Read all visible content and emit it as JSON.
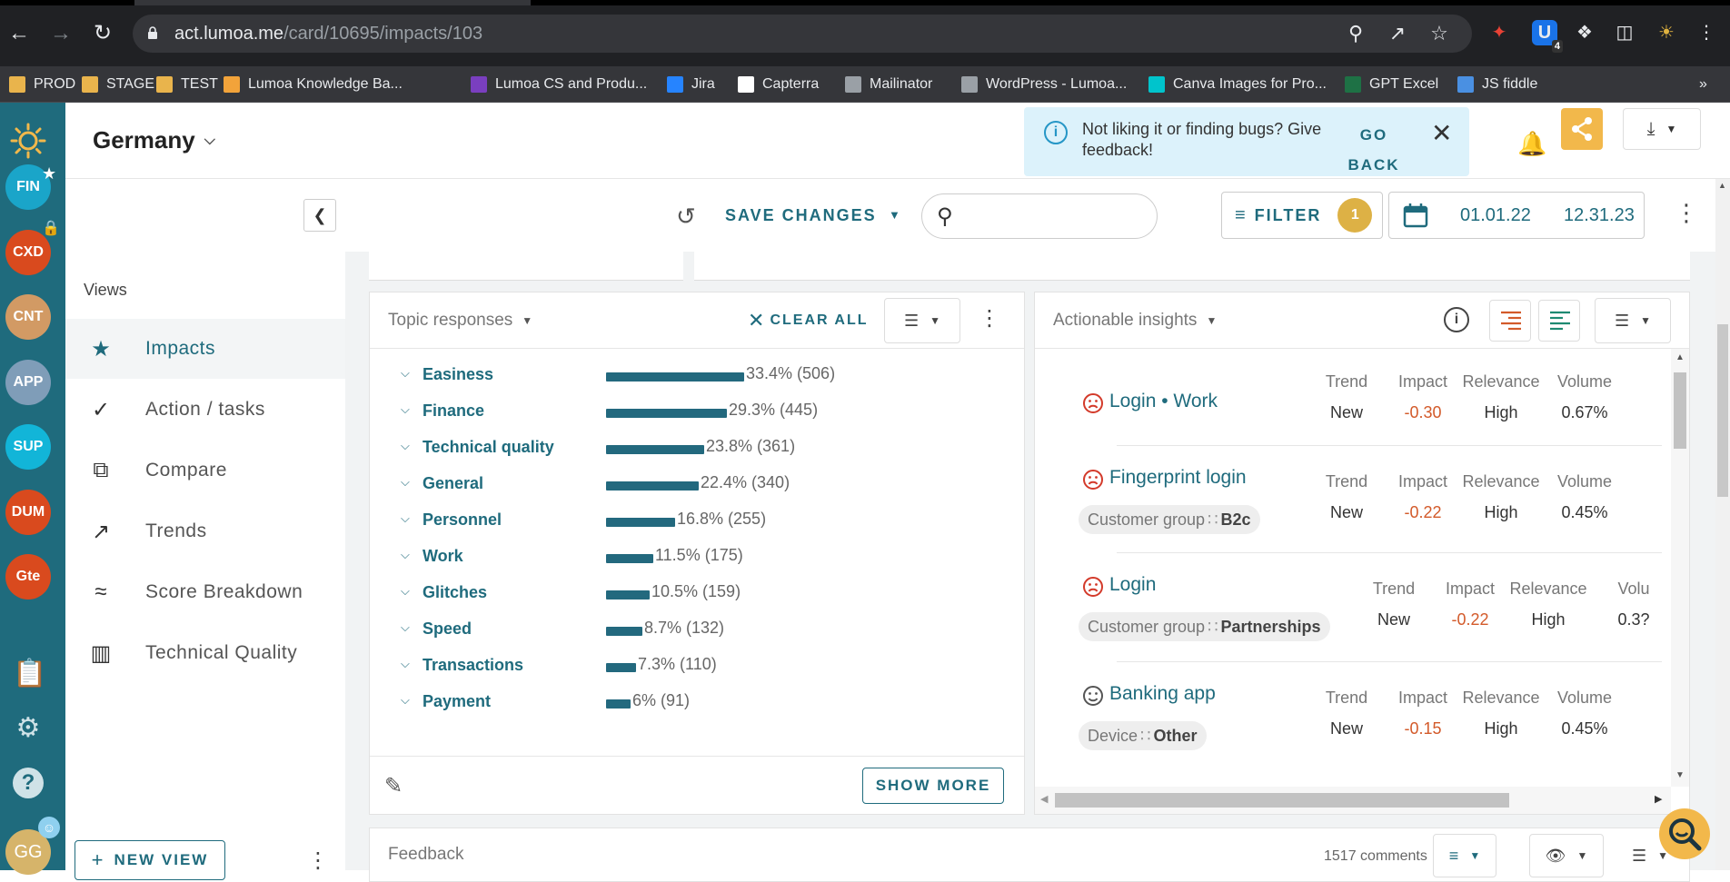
{
  "browser": {
    "url_host": "act.lumoa.me",
    "url_path": "/card/10695/impacts/103",
    "ext_badge": "4",
    "bookmarks": [
      {
        "label": "PROD",
        "color": "#e9b44c"
      },
      {
        "label": "STAGE",
        "color": "#e9b44c"
      },
      {
        "label": "TEST",
        "color": "#e9b44c"
      },
      {
        "label": "Lumoa Knowledge Ba...",
        "color": "#f2a33a"
      },
      {
        "label": "Lumoa CS and Produ...",
        "color": "#7a3fbf"
      },
      {
        "label": "Jira",
        "color": "#2684ff"
      },
      {
        "label": "Capterra",
        "color": "#ffffff"
      },
      {
        "label": "Mailinator",
        "color": "#9aa0a6"
      },
      {
        "label": "WordPress - Lumoa...",
        "color": "#9aa0a6"
      },
      {
        "label": "Canva Images for Pro...",
        "color": "#00c4cc"
      },
      {
        "label": "GPT Excel",
        "color": "#1e7145"
      },
      {
        "label": "JS fiddle",
        "color": "#4a90e2"
      }
    ]
  },
  "rail": {
    "avatars": [
      {
        "label": "FIN",
        "color": "#1aa5c9"
      },
      {
        "label": "CXD",
        "color": "#d94a1e"
      },
      {
        "label": "CNT",
        "color": "#d29a64"
      },
      {
        "label": "APP",
        "color": "#7f9db8"
      },
      {
        "label": "SUP",
        "color": "#12b5d8"
      },
      {
        "label": "DUM",
        "color": "#d94a1e"
      },
      {
        "label": "Gte",
        "color": "#d94a1e"
      }
    ],
    "user_initials": "GG"
  },
  "header": {
    "project": "Germany",
    "toast_message": "Not liking it or finding bugs? Give feedback!",
    "toast_action": "GO BACK"
  },
  "views": {
    "title": "Views",
    "items": [
      {
        "label": "Impacts",
        "icon": "star-icon"
      },
      {
        "label": "Action / tasks",
        "icon": "check-circle-icon"
      },
      {
        "label": "Compare",
        "icon": "compare-icon"
      },
      {
        "label": "Trends",
        "icon": "trend-icon"
      },
      {
        "label": "Score Breakdown",
        "icon": "score-breakdown-icon"
      },
      {
        "label": "Technical Quality",
        "icon": "bar-chart-icon"
      }
    ],
    "new_view": "NEW VIEW"
  },
  "toolbar": {
    "save_changes": "SAVE CHANGES",
    "search_placeholder": "",
    "filter_label": "FILTER",
    "filter_count": "1",
    "date_from": "01.01.22",
    "date_to": "12.31.23"
  },
  "topics": {
    "title": "Topic responses",
    "clear_all": "CLEAR ALL",
    "show_more": "SHOW MORE",
    "rows": [
      {
        "name": "Easiness",
        "pct": 33.4,
        "value": "33.4% (506)"
      },
      {
        "name": "Finance",
        "pct": 29.3,
        "value": "29.3% (445)"
      },
      {
        "name": "Technical quality",
        "pct": 23.8,
        "value": "23.8% (361)"
      },
      {
        "name": "General",
        "pct": 22.4,
        "value": "22.4% (340)"
      },
      {
        "name": "Personnel",
        "pct": 16.8,
        "value": "16.8% (255)"
      },
      {
        "name": "Work",
        "pct": 11.5,
        "value": "11.5% (175)"
      },
      {
        "name": "Glitches",
        "pct": 10.5,
        "value": "10.5% (159)"
      },
      {
        "name": "Speed",
        "pct": 8.7,
        "value": "8.7% (132)"
      },
      {
        "name": "Transactions",
        "pct": 7.3,
        "value": "7.3% (110)"
      },
      {
        "name": "Payment",
        "pct": 6,
        "value": "6% (91)"
      }
    ]
  },
  "insights": {
    "title": "Actionable insights",
    "headers": {
      "trend": "Trend",
      "impact": "Impact",
      "relevance": "Relevance",
      "volume": "Volume"
    },
    "rows": [
      {
        "name": "Login • Work",
        "sentiment": "negative",
        "chip_key": "",
        "chip_value": "",
        "trend": "New",
        "impact": "-0.30",
        "relevance": "High",
        "volume": "0.67%",
        "volume_header": "Volume"
      },
      {
        "name": "Fingerprint login",
        "sentiment": "negative",
        "chip_key": "Customer group",
        "chip_value": "B2c",
        "trend": "New",
        "impact": "-0.22",
        "relevance": "High",
        "volume": "0.45%",
        "volume_header": "Volume"
      },
      {
        "name": "Login",
        "sentiment": "negative",
        "chip_key": "Customer group",
        "chip_value": "Partnerships",
        "trend": "New",
        "impact": "-0.22",
        "relevance": "High",
        "volume": "0.3?",
        "volume_header": "Volu"
      },
      {
        "name": "Banking app",
        "sentiment": "neutral",
        "chip_key": "Device",
        "chip_value": "Other",
        "trend": "New",
        "impact": "-0.15",
        "relevance": "High",
        "volume": "0.45%",
        "volume_header": "Volume"
      }
    ]
  },
  "feedback": {
    "title": "Feedback",
    "count": "1517 comments"
  },
  "colors": {
    "brand": "#1f6b7d",
    "accent": "#f2b84b",
    "negative": "#d35a2a"
  }
}
